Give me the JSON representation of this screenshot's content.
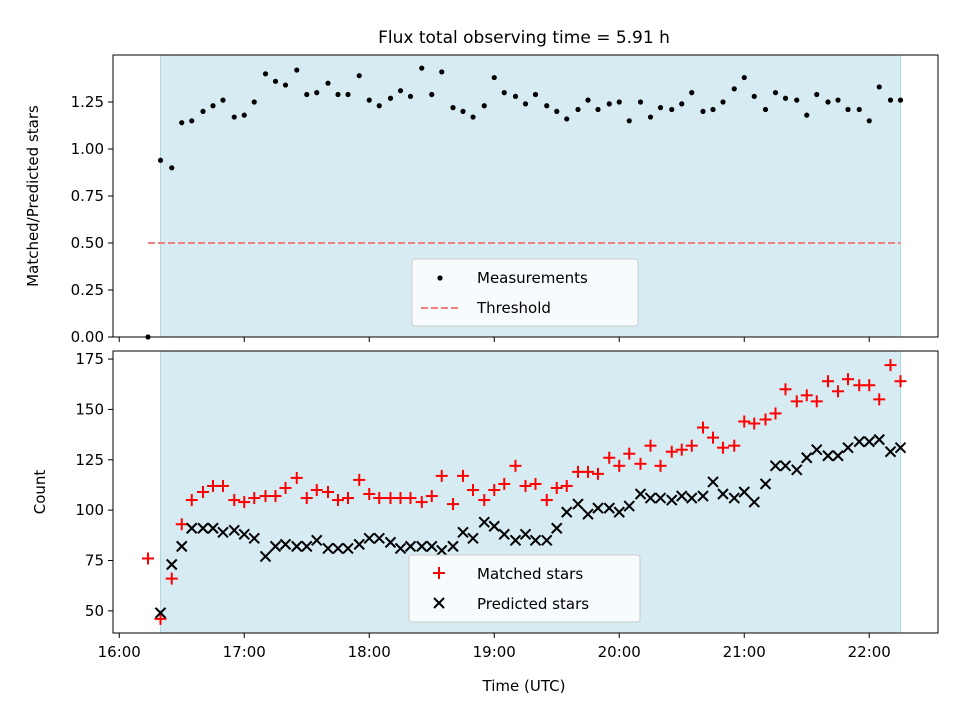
{
  "chart_data": [
    {
      "type": "scatter",
      "title": "Flux total observing time = 5.91 h",
      "xlabel": "",
      "ylabel": "Matched/Predicted stars",
      "x_range_hours": [
        15.95,
        22.55
      ],
      "ylim": [
        0,
        1.5
      ],
      "yticks": [
        0,
        0.25,
        0.5,
        0.75,
        1.0,
        1.25
      ],
      "ytick_labels": [
        "0.00",
        "0.25",
        "0.50",
        "0.75",
        "1.00",
        "1.25"
      ],
      "shaded_span_hours": [
        16.33,
        22.25
      ],
      "shade_color": "#add8e6",
      "threshold": {
        "label": "Threshold",
        "value": 0.5,
        "x_start": 16.23,
        "x_end": 22.25,
        "color": "#f08080"
      },
      "series": [
        {
          "name": "Measurements",
          "color": "#000000",
          "x": [
            16.23,
            16.33,
            16.42,
            16.5,
            16.58,
            16.67,
            16.75,
            16.83,
            16.92,
            17.0,
            17.08,
            17.17,
            17.25,
            17.33,
            17.42,
            17.5,
            17.58,
            17.67,
            17.75,
            17.83,
            17.92,
            18.0,
            18.08,
            18.17,
            18.25,
            18.33,
            18.42,
            18.5,
            18.58,
            18.67,
            18.75,
            18.83,
            18.92,
            19.0,
            19.08,
            19.17,
            19.25,
            19.33,
            19.42,
            19.5,
            19.58,
            19.67,
            19.75,
            19.83,
            19.92,
            20.0,
            20.08,
            20.17,
            20.25,
            20.33,
            20.42,
            20.5,
            20.58,
            20.67,
            20.75,
            20.83,
            20.92,
            21.0,
            21.08,
            21.17,
            21.25,
            21.33,
            21.42,
            21.5,
            21.58,
            21.67,
            21.75,
            21.83,
            21.92,
            22.0,
            22.08,
            22.17,
            22.25
          ],
          "values": [
            0.0,
            0.94,
            0.9,
            1.14,
            1.15,
            1.2,
            1.23,
            1.26,
            1.17,
            1.18,
            1.25,
            1.4,
            1.36,
            1.34,
            1.42,
            1.29,
            1.3,
            1.35,
            1.29,
            1.29,
            1.39,
            1.26,
            1.23,
            1.27,
            1.31,
            1.28,
            1.43,
            1.29,
            1.41,
            1.22,
            1.2,
            1.17,
            1.23,
            1.38,
            1.3,
            1.28,
            1.24,
            1.29,
            1.23,
            1.2,
            1.16,
            1.21,
            1.26,
            1.21,
            1.24,
            1.25,
            1.15,
            1.25,
            1.17,
            1.22,
            1.21,
            1.24,
            1.3,
            1.2,
            1.21,
            1.25,
            1.32,
            1.38,
            1.28,
            1.21,
            1.3,
            1.27,
            1.26,
            1.18,
            1.29,
            1.25,
            1.26,
            1.21,
            1.21,
            1.15,
            1.33,
            1.26,
            1.26
          ]
        }
      ],
      "legend": {
        "position": "lower center",
        "entries": [
          "Measurements",
          "Threshold"
        ]
      }
    },
    {
      "type": "scatter",
      "title": "",
      "xlabel": "Time (UTC)",
      "ylabel": "Count",
      "x_range_hours": [
        15.95,
        22.55
      ],
      "xticks_hours": [
        16,
        17,
        18,
        19,
        20,
        21,
        22
      ],
      "xtick_labels": [
        "16:00",
        "17:00",
        "18:00",
        "19:00",
        "20:00",
        "21:00",
        "22:00"
      ],
      "ylim": [
        39,
        179
      ],
      "yticks": [
        50,
        75,
        100,
        125,
        150,
        175
      ],
      "ytick_labels": [
        "50",
        "75",
        "100",
        "125",
        "150",
        "175"
      ],
      "shaded_span_hours": [
        16.33,
        22.25
      ],
      "series": [
        {
          "name": "Matched stars",
          "marker": "plus",
          "color": "#ff0000",
          "x": [
            16.23,
            16.33,
            16.42,
            16.5,
            16.58,
            16.67,
            16.75,
            16.83,
            16.92,
            17.0,
            17.08,
            17.17,
            17.25,
            17.33,
            17.42,
            17.5,
            17.58,
            17.67,
            17.75,
            17.83,
            17.92,
            18.0,
            18.08,
            18.17,
            18.25,
            18.33,
            18.42,
            18.5,
            18.58,
            18.67,
            18.75,
            18.83,
            18.92,
            19.0,
            19.08,
            19.17,
            19.25,
            19.33,
            19.42,
            19.5,
            19.58,
            19.67,
            19.75,
            19.83,
            19.92,
            20.0,
            20.08,
            20.17,
            20.25,
            20.33,
            20.42,
            20.5,
            20.58,
            20.67,
            20.75,
            20.83,
            20.92,
            21.0,
            21.08,
            21.17,
            21.25,
            21.33,
            21.42,
            21.5,
            21.58,
            21.67,
            21.75,
            21.83,
            21.92,
            22.0,
            22.08,
            22.17,
            22.25
          ],
          "values": [
            76,
            46,
            66,
            93,
            105,
            109,
            112,
            112,
            105,
            104,
            106,
            107,
            107,
            111,
            116,
            106,
            110,
            109,
            105,
            106,
            115,
            108,
            106,
            106,
            106,
            106,
            104,
            107,
            117,
            103,
            117,
            110,
            105,
            110,
            113,
            122,
            112,
            113,
            105,
            111,
            112,
            119,
            119,
            118,
            126,
            122,
            128,
            123,
            132,
            122,
            129,
            130,
            132,
            141,
            136,
            131,
            132,
            144,
            143,
            145,
            148,
            160,
            154,
            157,
            154,
            164,
            159,
            165,
            162,
            162,
            155,
            172,
            164
          ]
        },
        {
          "name": "Predicted stars",
          "marker": "x",
          "color": "#000000",
          "x": [
            16.33,
            16.42,
            16.5,
            16.58,
            16.67,
            16.75,
            16.83,
            16.92,
            17.0,
            17.08,
            17.17,
            17.25,
            17.33,
            17.42,
            17.5,
            17.58,
            17.67,
            17.75,
            17.83,
            17.92,
            18.0,
            18.08,
            18.17,
            18.25,
            18.33,
            18.42,
            18.5,
            18.58,
            18.67,
            18.75,
            18.83,
            18.92,
            19.0,
            19.08,
            19.17,
            19.25,
            19.33,
            19.42,
            19.5,
            19.58,
            19.67,
            19.75,
            19.83,
            19.92,
            20.0,
            20.08,
            20.17,
            20.25,
            20.33,
            20.42,
            20.5,
            20.58,
            20.67,
            20.75,
            20.83,
            20.92,
            21.0,
            21.08,
            21.17,
            21.25,
            21.33,
            21.42,
            21.5,
            21.58,
            21.67,
            21.75,
            21.83,
            21.92,
            22.0,
            22.08,
            22.17,
            22.25
          ],
          "values": [
            49,
            73,
            82,
            91,
            91,
            91,
            89,
            90,
            88,
            86,
            77,
            82,
            83,
            82,
            82,
            85,
            81,
            81,
            81,
            83,
            86,
            86,
            84,
            81,
            82,
            82,
            82,
            80,
            82,
            89,
            86,
            94,
            92,
            88,
            85,
            88,
            85,
            85,
            91,
            99,
            103,
            98,
            101,
            101,
            99,
            102,
            108,
            106,
            106,
            105,
            107,
            106,
            107,
            114,
            108,
            106,
            109,
            104,
            113,
            122,
            122,
            120,
            126,
            130,
            127,
            127,
            131,
            134,
            134,
            135,
            129,
            131
          ]
        }
      ],
      "legend": {
        "position": "lower center",
        "entries": [
          "Matched stars",
          "Predicted stars"
        ]
      }
    }
  ]
}
